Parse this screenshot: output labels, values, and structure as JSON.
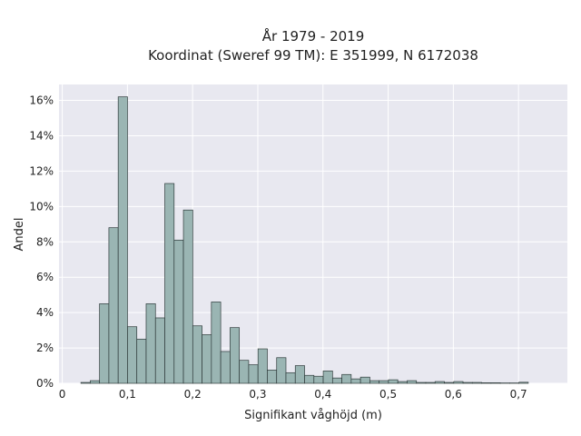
{
  "chart_data": {
    "type": "bar",
    "title": "År 1979 - 2019",
    "subtitle": "Koordinat (Sweref 99 TM): E 351999, N 6172038",
    "xlabel": "Signifikant våghöjd (m)",
    "ylabel": "Andel",
    "xlim": [
      -0.005,
      0.775
    ],
    "ylim": [
      0,
      16.9
    ],
    "x_ticks": [
      0,
      0.1,
      0.2,
      0.3,
      0.4,
      0.5,
      0.6,
      0.7
    ],
    "x_tick_labels": [
      "0",
      "0,1",
      "0,2",
      "0,3",
      "0,4",
      "0,5",
      "0,6",
      "0,7"
    ],
    "y_ticks": [
      0,
      2,
      4,
      6,
      8,
      10,
      12,
      14,
      16
    ],
    "y_tick_labels": [
      "0%",
      "2%",
      "4%",
      "6%",
      "8%",
      "10%",
      "12%",
      "14%",
      "16%"
    ],
    "grid": true,
    "bin_width": 0.0143,
    "bins_start": [
      0.0286,
      0.0429,
      0.0572,
      0.0715,
      0.0858,
      0.1001,
      0.1144,
      0.1287,
      0.143,
      0.1573,
      0.1716,
      0.1859,
      0.2002,
      0.2145,
      0.2288,
      0.2431,
      0.2574,
      0.2717,
      0.286,
      0.3003,
      0.3146,
      0.3289,
      0.3432,
      0.3575,
      0.3718,
      0.3861,
      0.4004,
      0.4147,
      0.429,
      0.4433,
      0.4576,
      0.4719,
      0.4862,
      0.5005,
      0.5148,
      0.5291,
      0.5434,
      0.5577,
      0.572,
      0.5863,
      0.6006,
      0.6149,
      0.6292,
      0.6435,
      0.6578,
      0.6721,
      0.6864,
      0.7007
    ],
    "values": [
      0.05,
      0.15,
      4.5,
      8.8,
      16.2,
      3.2,
      2.5,
      4.5,
      3.7,
      11.3,
      8.1,
      9.8,
      3.25,
      2.75,
      4.6,
      1.8,
      3.15,
      1.3,
      1.05,
      1.95,
      0.75,
      1.45,
      0.6,
      1.0,
      0.45,
      0.4,
      0.7,
      0.3,
      0.5,
      0.25,
      0.35,
      0.15,
      0.15,
      0.2,
      0.1,
      0.15,
      0.05,
      0.05,
      0.1,
      0.05,
      0.1,
      0.05,
      0.05,
      0.03,
      0.03,
      0.02,
      0.02,
      0.06
    ],
    "colors": {
      "bar_fill": "#9ab5b3",
      "bar_edge": "#2f3b3b",
      "plot_bg": "#e8e8f0",
      "grid": "#ffffff"
    }
  }
}
